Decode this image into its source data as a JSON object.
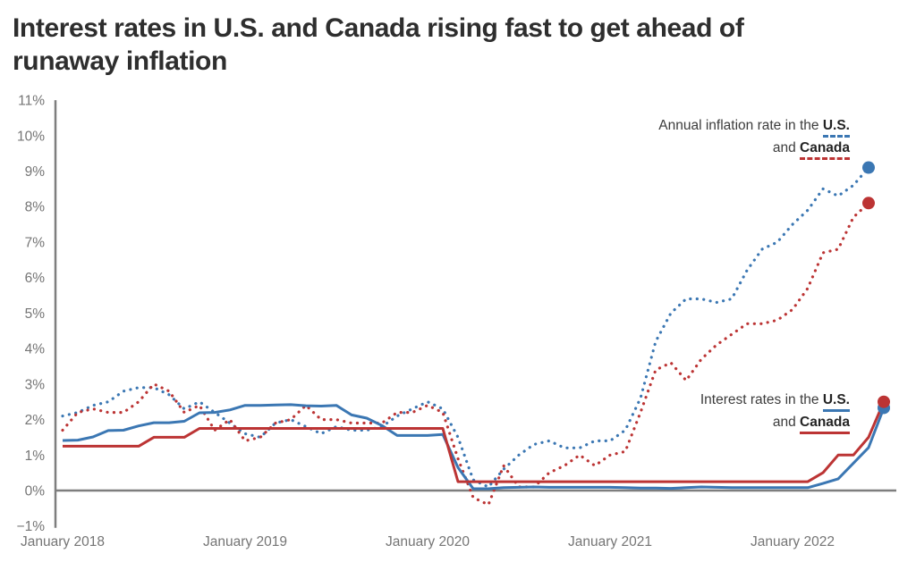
{
  "title": {
    "lines": [
      "Interest rates in U.S. and Canada rising fast to get ahead of",
      "runaway inflation"
    ]
  },
  "theme": {
    "blue": "#3B77B3",
    "red": "#BC3434",
    "axis": "#7E7E7E",
    "tick": "#757575",
    "title_color": "#2E2E2E",
    "legend_text": "#3C3C3C",
    "background": "#FFFFFF"
  },
  "legends": {
    "inflation": {
      "line1_text": "Annual inflation rate in the ",
      "us_label": "U.S.",
      "line2_text": "and ",
      "canada_label": "Canada"
    },
    "rates": {
      "line1_text": "Interest rates in the ",
      "us_label": "U.S.",
      "line2_text": "and ",
      "canada_label": "Canada"
    }
  },
  "chart_data": {
    "type": "line",
    "title": "Interest rates in U.S. and Canada rising fast to get ahead of runaway inflation",
    "x_unit": "month",
    "x_range": [
      "January 2018",
      "July 2022"
    ],
    "ylim": [
      -1,
      11
    ],
    "grid": false,
    "y_ticks": [
      {
        "value": 11,
        "label": "11%"
      },
      {
        "value": 10,
        "label": "10%"
      },
      {
        "value": 9,
        "label": "9%"
      },
      {
        "value": 8,
        "label": "8%"
      },
      {
        "value": 7,
        "label": "7%"
      },
      {
        "value": 6,
        "label": "6%"
      },
      {
        "value": 5,
        "label": "5%"
      },
      {
        "value": 4,
        "label": "4%"
      },
      {
        "value": 3,
        "label": "3%"
      },
      {
        "value": 2,
        "label": "2%"
      },
      {
        "value": 1,
        "label": "1%"
      },
      {
        "value": 0,
        "label": "0%"
      },
      {
        "value": -1,
        "label": "−1%"
      }
    ],
    "x_ticks": [
      {
        "month_index": 0,
        "label": "January 2018"
      },
      {
        "month_index": 12,
        "label": "January 2019"
      },
      {
        "month_index": 24,
        "label": "January 2020"
      },
      {
        "month_index": 36,
        "label": "January 2021"
      },
      {
        "month_index": 48,
        "label": "January 2022"
      }
    ],
    "series": [
      {
        "id": "us-inflation",
        "name": "Annual inflation rate in the U.S.",
        "color": "#3B77B3",
        "line_style": "dotted",
        "end_dot": true,
        "values": [
          2.1,
          2.2,
          2.4,
          2.5,
          2.8,
          2.9,
          2.9,
          2.7,
          2.3,
          2.5,
          2.2,
          1.9,
          1.6,
          1.5,
          1.9,
          2.0,
          1.8,
          1.6,
          1.8,
          1.7,
          1.7,
          1.8,
          2.1,
          2.3,
          2.5,
          2.3,
          1.5,
          0.3,
          0.1,
          0.6,
          1.0,
          1.3,
          1.4,
          1.2,
          1.2,
          1.4,
          1.4,
          1.7,
          2.6,
          4.2,
          5.0,
          5.4,
          5.4,
          5.3,
          5.4,
          6.2,
          6.8,
          7.0,
          7.5,
          7.9,
          8.5,
          8.3,
          8.6,
          9.1
        ]
      },
      {
        "id": "canada-inflation",
        "name": "Annual inflation rate in Canada",
        "color": "#BC3434",
        "line_style": "dotted",
        "end_dot": true,
        "values": [
          1.7,
          2.2,
          2.3,
          2.2,
          2.2,
          2.5,
          3.0,
          2.8,
          2.2,
          2.4,
          1.7,
          2.0,
          1.4,
          1.5,
          1.9,
          2.0,
          2.4,
          2.0,
          2.0,
          1.9,
          1.9,
          1.9,
          2.2,
          2.2,
          2.4,
          2.2,
          0.9,
          -0.2,
          -0.4,
          0.7,
          0.1,
          0.1,
          0.5,
          0.7,
          1.0,
          0.7,
          1.0,
          1.1,
          2.2,
          3.4,
          3.6,
          3.1,
          3.7,
          4.1,
          4.4,
          4.7,
          4.7,
          4.8,
          5.1,
          5.7,
          6.7,
          6.8,
          7.7,
          8.1
        ]
      },
      {
        "id": "us-interest-rate",
        "name": "Interest rates in the U.S.",
        "color": "#3B77B3",
        "line_style": "solid",
        "end_dot": true,
        "values": [
          1.41,
          1.42,
          1.51,
          1.69,
          1.7,
          1.82,
          1.91,
          1.91,
          1.95,
          2.19,
          2.2,
          2.27,
          2.4,
          2.4,
          2.41,
          2.42,
          2.39,
          2.38,
          2.4,
          2.13,
          2.04,
          1.83,
          1.55,
          1.55,
          1.55,
          1.58,
          0.65,
          0.05,
          0.05,
          0.08,
          0.09,
          0.1,
          0.09,
          0.09,
          0.09,
          0.09,
          0.09,
          0.08,
          0.07,
          0.07,
          0.06,
          0.08,
          0.1,
          0.09,
          0.08,
          0.08,
          0.08,
          0.08,
          0.08,
          0.08,
          0.2,
          0.33,
          0.77,
          1.21,
          2.33
        ]
      },
      {
        "id": "canada-interest-rate",
        "name": "Interest rates in Canada",
        "color": "#BC3434",
        "line_style": "solid",
        "end_dot": true,
        "values": [
          1.25,
          1.25,
          1.25,
          1.25,
          1.25,
          1.25,
          1.5,
          1.5,
          1.5,
          1.75,
          1.75,
          1.75,
          1.75,
          1.75,
          1.75,
          1.75,
          1.75,
          1.75,
          1.75,
          1.75,
          1.75,
          1.75,
          1.75,
          1.75,
          1.75,
          1.75,
          0.25,
          0.25,
          0.25,
          0.25,
          0.25,
          0.25,
          0.25,
          0.25,
          0.25,
          0.25,
          0.25,
          0.25,
          0.25,
          0.25,
          0.25,
          0.25,
          0.25,
          0.25,
          0.25,
          0.25,
          0.25,
          0.25,
          0.25,
          0.25,
          0.5,
          1.0,
          1.0,
          1.5,
          2.5
        ]
      }
    ]
  }
}
